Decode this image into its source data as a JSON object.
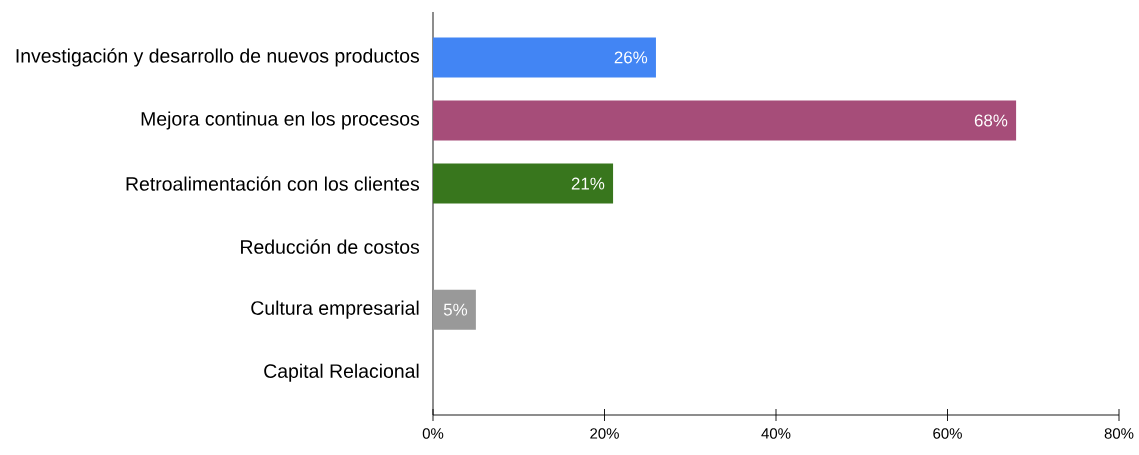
{
  "chart_data": {
    "type": "bar",
    "orientation": "horizontal",
    "categories": [
      "Investigación y desarrollo de nuevos productos",
      "Mejora continua en los procesos",
      "Retroalimentación con los clientes",
      "Reducción de costos",
      "Cultura empresarial",
      "Capital Relacional"
    ],
    "values": [
      26,
      68,
      21,
      0,
      5,
      0
    ],
    "colors": [
      "#4285f4",
      "#a64d79",
      "#38761d",
      null,
      "#999999",
      null
    ],
    "value_labels": [
      "26%",
      "68%",
      "21%",
      null,
      "5%",
      null
    ],
    "xlim": [
      0,
      80
    ],
    "xticks": [
      {
        "value": 0,
        "label": "0%"
      },
      {
        "value": 20,
        "label": "20%"
      },
      {
        "value": 40,
        "label": "40%"
      },
      {
        "value": 60,
        "label": "60%"
      },
      {
        "value": 80,
        "label": "80%"
      }
    ],
    "grid": false
  }
}
